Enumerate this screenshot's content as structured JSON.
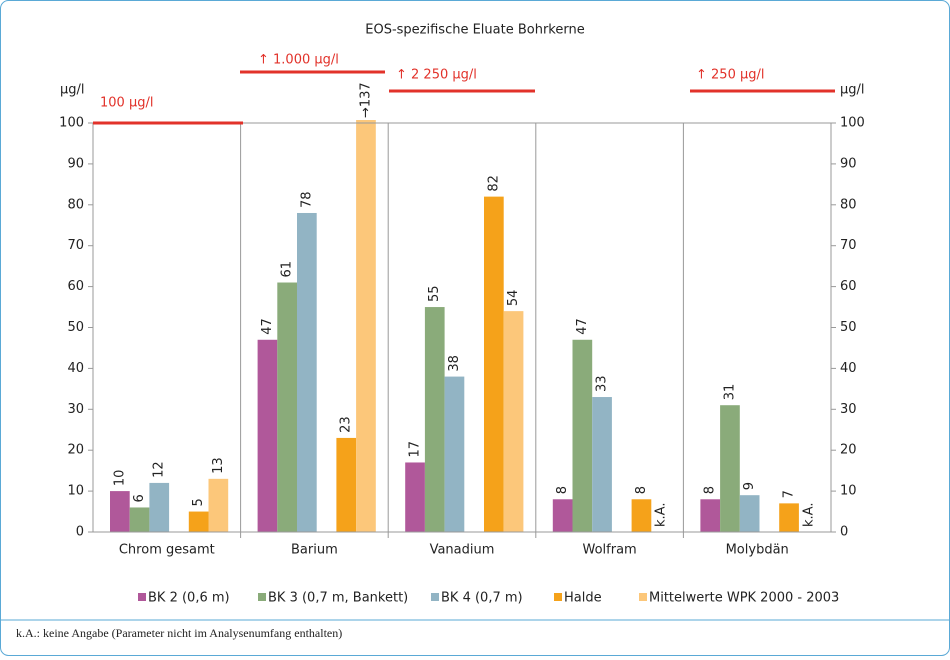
{
  "chart_data": {
    "type": "bar",
    "title": "EOS-spezifische Eluate Bohrkerne",
    "y_label": "µg/l",
    "y2_label": "µg/l",
    "categories": [
      "Chrom gesamt",
      "Barium",
      "Vanadium",
      "Wolfram",
      "Molybdän"
    ],
    "series": [
      {
        "name": "BK 2 (0,6 m)",
        "color": "#b0589a",
        "values": [
          10,
          47,
          17,
          8,
          8
        ]
      },
      {
        "name": "BK 3 (0,7 m, Bankett)",
        "color": "#8aab7a",
        "values": [
          6,
          61,
          55,
          47,
          31
        ]
      },
      {
        "name": "BK 4 (0,7 m)",
        "color": "#92b4c4",
        "values": [
          12,
          78,
          38,
          33,
          9
        ]
      },
      {
        "name": "Halde",
        "color": "#f5a21a",
        "values": [
          5,
          23,
          82,
          8,
          7
        ]
      },
      {
        "name": "Mittelwerte WPK 2000 - 2003",
        "color": "#fcc77a",
        "values": [
          13,
          137,
          54,
          null,
          null
        ],
        "value_labels": [
          "13",
          "→137",
          "54",
          "k.A.",
          "k.A."
        ]
      }
    ],
    "ylim": [
      0,
      100
    ],
    "yticks": [
      0,
      10,
      20,
      30,
      40,
      50,
      60,
      70,
      80,
      90,
      100
    ],
    "limits": [
      {
        "value": 100,
        "label": "100 µg/l",
        "color": "#e2322a"
      },
      {
        "value": 1000,
        "label": "↑ 1.000 µg/l",
        "color": "#e2322a"
      },
      {
        "value": 2250,
        "label": "↑ 2 250 µg/l",
        "color": "#e2322a"
      },
      {
        "value": 250,
        "label": "↑ 250 µg/l",
        "color": "#e2322a"
      }
    ],
    "footnote": "k.A.:  keine Angabe (Parameter nicht im Analysenumfang enthalten)"
  }
}
